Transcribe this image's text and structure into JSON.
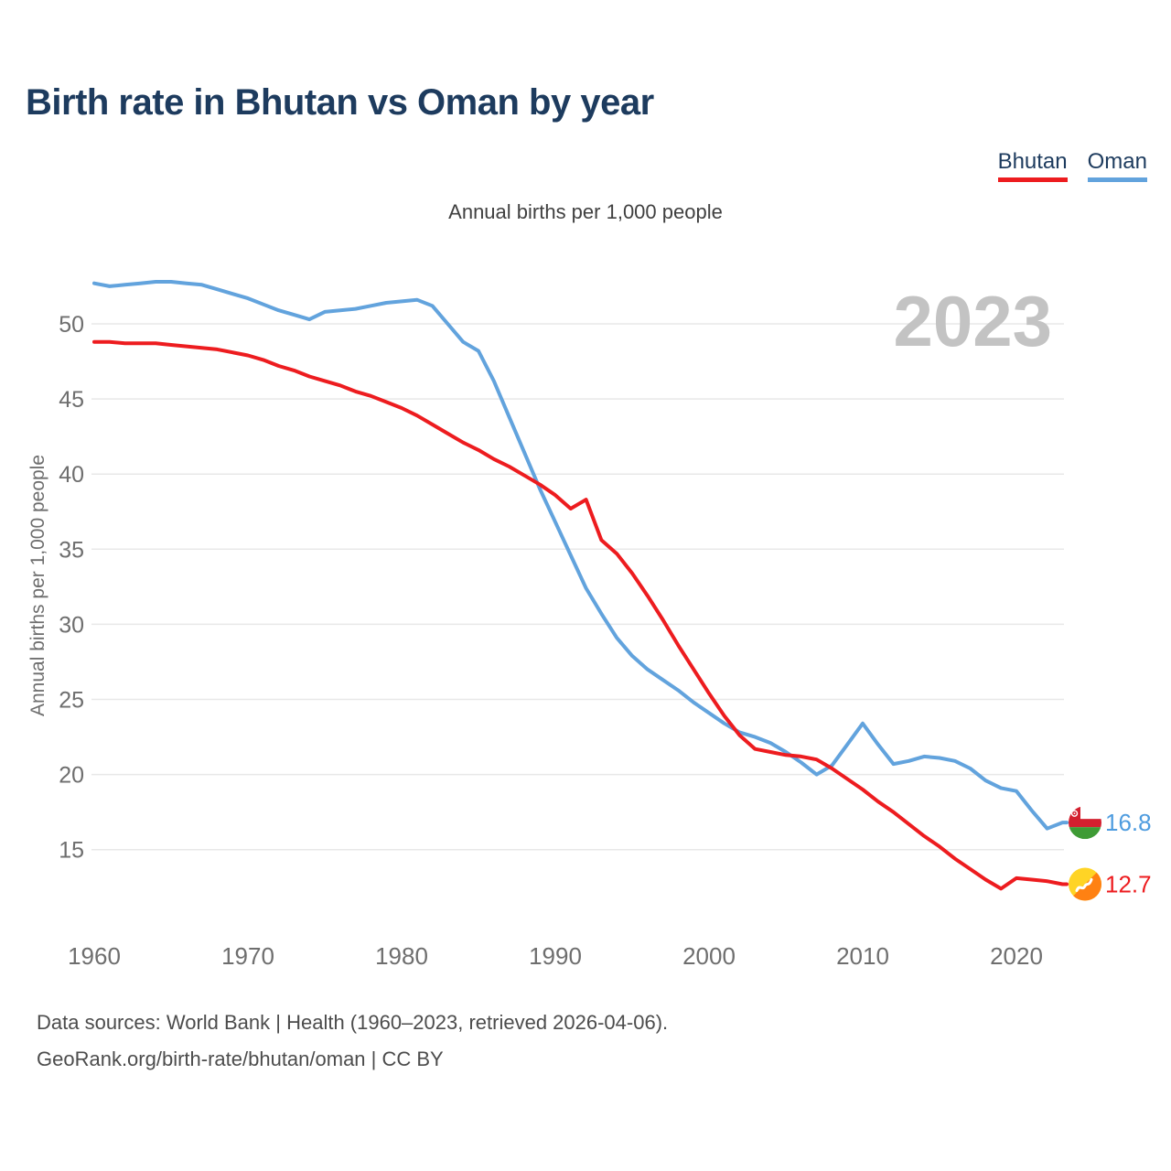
{
  "page": {
    "title": "Birth rate in Bhutan vs Oman by year"
  },
  "legend": [
    {
      "label": "Bhutan",
      "color": "#ed1c1f"
    },
    {
      "label": "Oman",
      "color": "#62a3dd"
    }
  ],
  "subtitle": "Annual births per 1,000 people",
  "y_axis_title": "Annual births per 1,000 people",
  "footer": {
    "line1": "Data sources: World Bank | Health (1960–2023, retrieved 2026-04-06).",
    "line2": "GeoRank.org/birth-rate/bhutan/oman | CC BY"
  },
  "chart_data": {
    "type": "line",
    "title": "Birth rate in Bhutan vs Oman by year",
    "subtitle": "Annual births per 1,000 people",
    "ylabel": "Annual births per 1,000 people",
    "watermark": "2023",
    "grid": "horizontal",
    "legend_position": "top-right",
    "ylim": [
      12,
      53.5
    ],
    "xlim": [
      1960,
      2023
    ],
    "y_ticks": [
      15,
      20,
      25,
      30,
      35,
      40,
      45,
      50
    ],
    "x_ticks": [
      1960,
      1970,
      1980,
      1990,
      2000,
      2010,
      2020
    ],
    "style": {
      "grid_color": "#e8e8e8",
      "tick_color": "#6e6e6e",
      "watermark_color": "#c3c3c3"
    },
    "x": [
      1960,
      1961,
      1962,
      1963,
      1964,
      1965,
      1966,
      1967,
      1968,
      1969,
      1970,
      1971,
      1972,
      1973,
      1974,
      1975,
      1976,
      1977,
      1978,
      1979,
      1980,
      1981,
      1982,
      1983,
      1984,
      1985,
      1986,
      1987,
      1988,
      1989,
      1990,
      1991,
      1992,
      1993,
      1994,
      1995,
      1996,
      1997,
      1998,
      1999,
      2000,
      2001,
      2002,
      2003,
      2004,
      2005,
      2006,
      2007,
      2008,
      2009,
      2010,
      2011,
      2012,
      2013,
      2014,
      2015,
      2016,
      2017,
      2018,
      2019,
      2020,
      2021,
      2022,
      2023
    ],
    "series": [
      {
        "name": "Bhutan",
        "color": "#ed1c1f",
        "value_color": "#ed1c1f",
        "flag": "bhutan",
        "end_label": "12.7",
        "values": [
          48.8,
          48.8,
          48.7,
          48.7,
          48.7,
          48.6,
          48.5,
          48.4,
          48.3,
          48.1,
          47.9,
          47.6,
          47.2,
          46.9,
          46.5,
          46.2,
          45.9,
          45.5,
          45.2,
          44.8,
          44.4,
          43.9,
          43.3,
          42.7,
          42.1,
          41.6,
          41.0,
          40.5,
          39.9,
          39.3,
          38.6,
          37.7,
          38.3,
          35.6,
          34.7,
          33.4,
          31.9,
          30.3,
          28.6,
          27.0,
          25.4,
          23.9,
          22.6,
          21.7,
          21.5,
          21.3,
          21.2,
          21.0,
          20.4,
          19.7,
          19.0,
          18.2,
          17.5,
          16.7,
          15.9,
          15.2,
          14.4,
          13.7,
          13.0,
          12.4,
          13.1,
          13.0,
          12.9,
          12.7
        ]
      },
      {
        "name": "Oman",
        "color": "#62a3dd",
        "value_color": "#4e9cdf",
        "flag": "oman",
        "end_label": "16.8",
        "values": [
          52.7,
          52.5,
          52.6,
          52.7,
          52.8,
          52.8,
          52.7,
          52.6,
          52.3,
          52.0,
          51.7,
          51.3,
          50.9,
          50.6,
          50.3,
          50.8,
          50.9,
          51.0,
          51.2,
          51.4,
          51.5,
          51.6,
          51.2,
          50.0,
          48.8,
          48.2,
          46.2,
          43.8,
          41.4,
          39.0,
          36.8,
          34.6,
          32.4,
          30.7,
          29.1,
          27.9,
          27.0,
          26.3,
          25.6,
          24.8,
          24.1,
          23.4,
          22.8,
          22.5,
          22.1,
          21.5,
          20.8,
          20.0,
          20.6,
          22.0,
          23.4,
          22.0,
          20.7,
          20.9,
          21.2,
          21.1,
          20.9,
          20.4,
          19.6,
          19.1,
          18.9,
          17.6,
          16.4,
          16.8
        ]
      }
    ]
  }
}
